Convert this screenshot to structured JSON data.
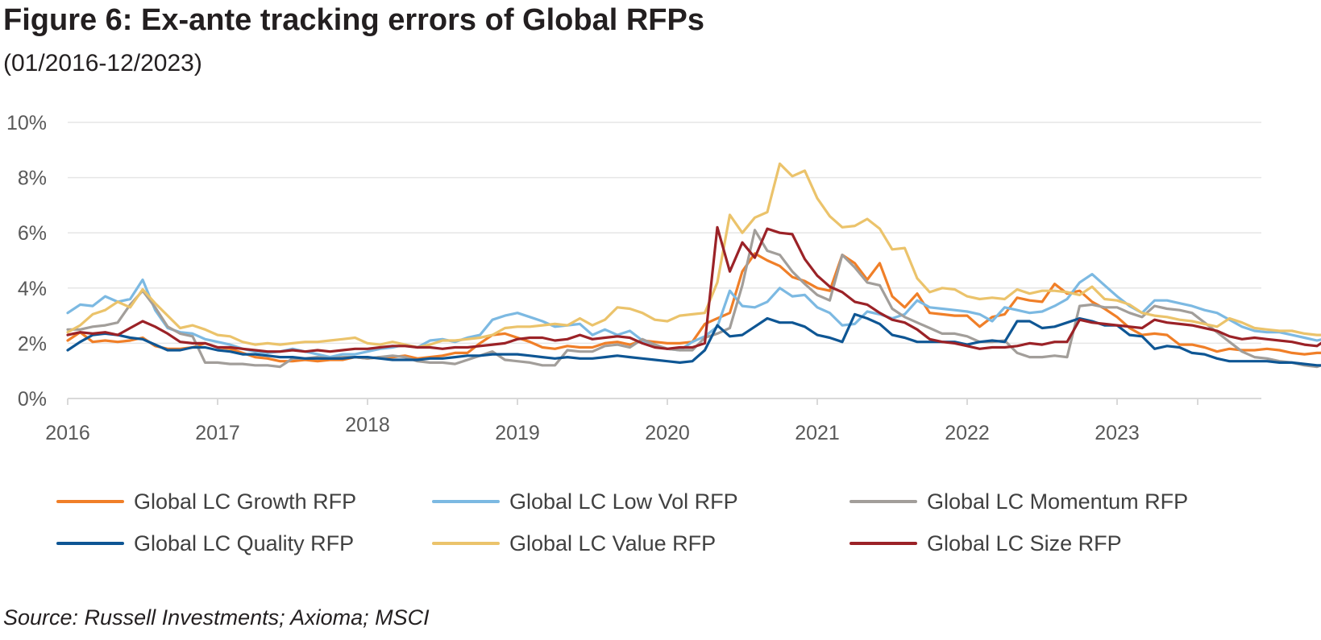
{
  "figure": {
    "title": "Figure 6: Ex-ante tracking errors of Global RFPs",
    "subtitle": "(01/2016-12/2023)",
    "source": "Source: Russell Investments; Axioma; MSCI"
  },
  "chart_data": {
    "type": "line",
    "title": "Figure 6: Ex-ante tracking errors of Global RFPs",
    "subtitle": "(01/2016-12/2023)",
    "xlabel": "",
    "ylabel": "",
    "x_start": "2016-01",
    "x_end": "2023-12",
    "x_ticks": [
      "2016",
      "2017",
      "2018",
      "2019",
      "2020",
      "2021",
      "2022",
      "2023"
    ],
    "y_ticks": [
      "0%",
      "2%",
      "4%",
      "6%",
      "8%",
      "10%"
    ],
    "ylim": [
      0,
      10
    ],
    "grid": "horizontal",
    "legend_position": "bottom",
    "series": [
      {
        "name": "Global LC Growth RFP",
        "color": "#f07f28",
        "values": [
          2.1,
          2.4,
          2.05,
          2.1,
          2.05,
          2.1,
          2.2,
          1.9,
          1.8,
          1.8,
          1.85,
          2.0,
          1.85,
          1.8,
          1.65,
          1.5,
          1.45,
          1.35,
          1.35,
          1.4,
          1.35,
          1.4,
          1.4,
          1.5,
          1.45,
          1.5,
          1.5,
          1.55,
          1.45,
          1.5,
          1.55,
          1.65,
          1.65,
          2.0,
          2.3,
          2.35,
          2.2,
          2.05,
          1.85,
          1.8,
          1.9,
          1.85,
          1.85,
          2.0,
          2.05,
          1.95,
          2.1,
          2.05,
          2.0,
          2.0,
          2.05,
          2.7,
          2.9,
          3.1,
          4.6,
          5.25,
          5.0,
          4.8,
          4.4,
          4.25,
          4.0,
          3.9,
          5.2,
          4.9,
          4.3,
          4.9,
          3.7,
          3.3,
          3.8,
          3.1,
          3.05,
          3.0,
          3.0,
          2.6,
          2.95,
          3.05,
          3.65,
          3.55,
          3.5,
          4.15,
          3.8,
          3.9,
          3.5,
          3.25,
          2.95,
          2.55,
          2.3,
          2.35,
          2.3,
          1.95,
          1.95,
          1.85,
          1.7,
          1.8,
          1.75,
          1.75,
          1.8,
          1.75,
          1.65,
          1.6,
          1.65,
          1.65
        ]
      },
      {
        "name": "Global LC Low Vol RFP",
        "color": "#7cb9e2",
        "values": [
          3.1,
          3.4,
          3.35,
          3.7,
          3.5,
          3.6,
          4.3,
          3.2,
          2.55,
          2.4,
          2.35,
          2.15,
          2.05,
          1.95,
          1.8,
          1.7,
          1.65,
          1.7,
          1.8,
          1.7,
          1.6,
          1.5,
          1.6,
          1.6,
          1.7,
          1.8,
          1.85,
          1.95,
          1.85,
          2.1,
          2.15,
          2.05,
          2.2,
          2.3,
          2.85,
          3.0,
          3.1,
          2.95,
          2.8,
          2.6,
          2.65,
          2.7,
          2.3,
          2.5,
          2.3,
          2.45,
          2.1,
          1.95,
          1.8,
          1.75,
          2.05,
          2.25,
          2.6,
          3.9,
          3.35,
          3.3,
          3.5,
          4.0,
          3.7,
          3.75,
          3.3,
          3.1,
          2.65,
          2.7,
          3.15,
          3.05,
          2.9,
          3.05,
          3.55,
          3.3,
          3.25,
          3.2,
          3.15,
          3.05,
          2.8,
          3.3,
          3.2,
          3.1,
          3.15,
          3.35,
          3.6,
          4.2,
          4.5,
          4.1,
          3.7,
          3.35,
          3.1,
          3.55,
          3.55,
          3.45,
          3.35,
          3.2,
          3.1,
          2.85,
          2.6,
          2.45,
          2.4,
          2.4,
          2.3,
          2.2,
          2.1,
          2.2
        ]
      },
      {
        "name": "Global LC Momentum RFP",
        "color": "#a29e9a",
        "values": [
          2.5,
          2.5,
          2.6,
          2.65,
          2.75,
          3.4,
          3.9,
          3.3,
          2.6,
          2.35,
          2.25,
          1.3,
          1.3,
          1.25,
          1.25,
          1.2,
          1.2,
          1.15,
          1.45,
          1.45,
          1.5,
          1.45,
          1.5,
          1.5,
          1.45,
          1.5,
          1.55,
          1.5,
          1.35,
          1.3,
          1.3,
          1.25,
          1.4,
          1.55,
          1.7,
          1.4,
          1.35,
          1.3,
          1.2,
          1.2,
          1.75,
          1.7,
          1.7,
          1.9,
          1.95,
          1.85,
          2.15,
          1.95,
          1.8,
          1.75,
          1.75,
          2.2,
          2.35,
          2.55,
          4.1,
          6.1,
          5.35,
          5.2,
          4.6,
          4.15,
          3.75,
          3.55,
          5.2,
          4.75,
          4.2,
          4.1,
          3.25,
          2.95,
          2.75,
          2.55,
          2.35,
          2.35,
          2.25,
          2.05,
          2.05,
          2.1,
          1.65,
          1.5,
          1.5,
          1.55,
          1.5,
          3.35,
          3.4,
          3.3,
          3.3,
          3.1,
          2.95,
          3.35,
          3.25,
          3.2,
          3.1,
          2.75,
          2.4,
          2.05,
          1.7,
          1.5,
          1.45,
          1.35,
          1.3,
          1.2,
          1.15,
          1.3
        ]
      },
      {
        "name": "Global LC Quality RFP",
        "color": "#0e5694",
        "values": [
          1.75,
          2.05,
          2.3,
          2.35,
          2.3,
          2.2,
          2.15,
          1.95,
          1.75,
          1.75,
          1.85,
          1.85,
          1.75,
          1.7,
          1.6,
          1.6,
          1.55,
          1.5,
          1.5,
          1.45,
          1.45,
          1.45,
          1.45,
          1.5,
          1.5,
          1.45,
          1.4,
          1.4,
          1.4,
          1.45,
          1.45,
          1.5,
          1.55,
          1.55,
          1.6,
          1.6,
          1.6,
          1.55,
          1.5,
          1.45,
          1.5,
          1.45,
          1.45,
          1.5,
          1.55,
          1.5,
          1.45,
          1.4,
          1.35,
          1.3,
          1.35,
          1.75,
          2.65,
          2.25,
          2.3,
          2.6,
          2.9,
          2.75,
          2.75,
          2.6,
          2.3,
          2.2,
          2.05,
          3.05,
          2.9,
          2.7,
          2.3,
          2.2,
          2.05,
          2.05,
          2.05,
          2.05,
          1.95,
          2.05,
          2.1,
          2.05,
          2.8,
          2.8,
          2.55,
          2.6,
          2.75,
          2.9,
          2.8,
          2.65,
          2.65,
          2.3,
          2.25,
          1.8,
          1.9,
          1.85,
          1.65,
          1.6,
          1.45,
          1.35,
          1.35,
          1.35,
          1.35,
          1.3,
          1.3,
          1.25,
          1.2,
          1.2
        ]
      },
      {
        "name": "Global LC Value RFP",
        "color": "#ebc36b",
        "values": [
          2.4,
          2.65,
          3.05,
          3.2,
          3.5,
          3.3,
          3.95,
          3.45,
          3.0,
          2.55,
          2.65,
          2.5,
          2.3,
          2.25,
          2.05,
          1.95,
          2.0,
          1.95,
          2.0,
          2.05,
          2.05,
          2.1,
          2.15,
          2.2,
          2.0,
          1.95,
          2.05,
          1.95,
          1.85,
          1.95,
          2.1,
          2.1,
          2.15,
          2.2,
          2.3,
          2.55,
          2.6,
          2.6,
          2.65,
          2.7,
          2.65,
          2.9,
          2.65,
          2.85,
          3.3,
          3.25,
          3.1,
          2.85,
          2.8,
          3.0,
          3.05,
          3.1,
          4.2,
          6.65,
          6.0,
          6.55,
          6.75,
          8.5,
          8.05,
          8.25,
          7.25,
          6.6,
          6.2,
          6.25,
          6.5,
          6.15,
          5.4,
          5.45,
          4.35,
          3.85,
          4.0,
          3.95,
          3.7,
          3.6,
          3.65,
          3.6,
          3.95,
          3.8,
          3.9,
          3.9,
          3.85,
          3.75,
          4.05,
          3.6,
          3.55,
          3.4,
          3.1,
          3.0,
          2.95,
          2.85,
          2.8,
          2.7,
          2.6,
          2.9,
          2.75,
          2.55,
          2.5,
          2.45,
          2.45,
          2.35,
          2.3,
          2.3
        ]
      },
      {
        "name": "Global LC Size RFP",
        "color": "#9b2227",
        "values": [
          2.3,
          2.4,
          2.35,
          2.4,
          2.3,
          2.55,
          2.8,
          2.6,
          2.35,
          2.05,
          2.0,
          2.0,
          1.85,
          1.85,
          1.8,
          1.75,
          1.7,
          1.7,
          1.75,
          1.7,
          1.75,
          1.7,
          1.75,
          1.8,
          1.8,
          1.85,
          1.9,
          1.9,
          1.85,
          1.85,
          1.8,
          1.85,
          1.85,
          1.9,
          1.95,
          2.0,
          2.15,
          2.2,
          2.2,
          2.1,
          2.15,
          2.3,
          2.15,
          2.2,
          2.25,
          2.2,
          2.0,
          1.85,
          1.8,
          1.85,
          1.85,
          2.0,
          6.2,
          4.6,
          5.65,
          5.1,
          6.15,
          6.0,
          5.95,
          5.05,
          4.45,
          4.05,
          3.85,
          3.5,
          3.4,
          3.1,
          2.85,
          2.75,
          2.5,
          2.15,
          2.05,
          2.0,
          1.9,
          1.8,
          1.85,
          1.85,
          1.9,
          2.0,
          1.95,
          2.05,
          2.05,
          2.85,
          2.75,
          2.7,
          2.65,
          2.6,
          2.55,
          2.85,
          2.75,
          2.7,
          2.65,
          2.55,
          2.45,
          2.25,
          2.15,
          2.2,
          2.15,
          2.1,
          2.05,
          1.95,
          1.9,
          2.2
        ]
      }
    ]
  }
}
